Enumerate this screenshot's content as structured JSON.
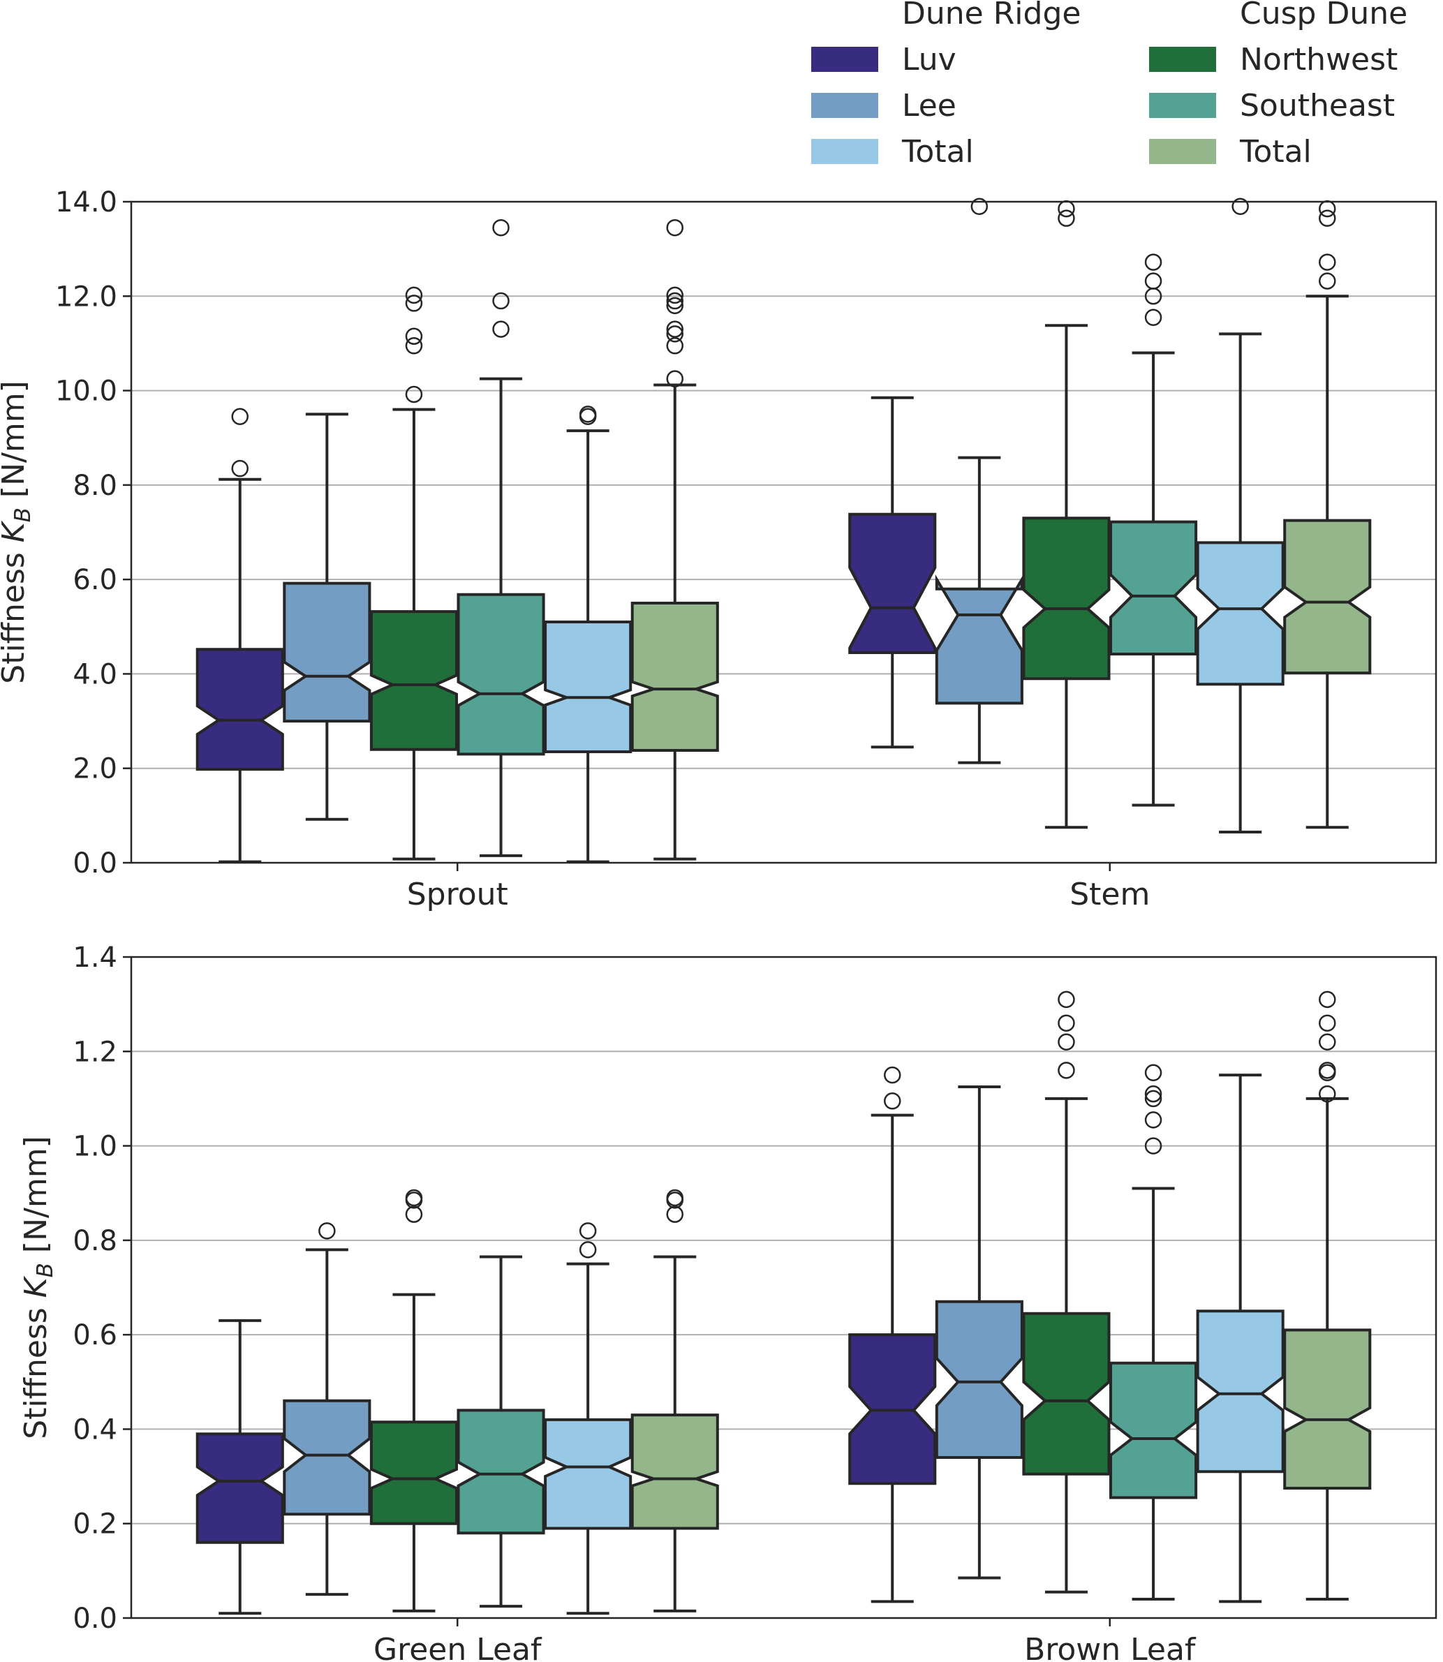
{
  "legend": {
    "groups": [
      {
        "title": "Dune Ridge",
        "entries": [
          {
            "label": "Luv",
            "color": "#372c7f"
          },
          {
            "label": "Lee",
            "color": "#749dc4"
          },
          {
            "label": "Total",
            "color": "#97c9e6"
          }
        ]
      },
      {
        "title": "Cusp Dune",
        "entries": [
          {
            "label": "Northwest",
            "color": "#206e3a"
          },
          {
            "label": "Southeast",
            "color": "#53a293"
          },
          {
            "label": "Total",
            "color": "#93b78b"
          }
        ]
      }
    ]
  },
  "chart_data": [
    {
      "type": "boxplot",
      "notched": true,
      "ylabel_text": "Stiffness ",
      "ylabel_symbol": "K",
      "ylabel_subscript": "B",
      "ylabel_unit": " [N/mm]",
      "ylim": [
        0,
        14
      ],
      "yticks": [
        "0.0",
        "2.0",
        "4.0",
        "6.0",
        "8.0",
        "10.0",
        "12.0",
        "14.0"
      ],
      "grid": true,
      "series_order": [
        "Luv",
        "Lee",
        "Northwest",
        "Southeast",
        "Total (Dune Ridge)",
        "Total (Cusp Dune)"
      ],
      "categories": [
        {
          "label": "Sprout",
          "boxes": [
            {
              "series": "Luv",
              "whislo": 0.02,
              "q1": 1.98,
              "med": 3.02,
              "q3": 4.52,
              "whishi": 8.12,
              "fliers": [
                8.35,
                9.45
              ],
              "notch": [
                2.72,
                3.32
              ]
            },
            {
              "series": "Lee",
              "whislo": 0.92,
              "q1": 3.0,
              "med": 3.95,
              "q3": 5.92,
              "whishi": 9.5,
              "fliers": [],
              "notch": [
                3.65,
                4.25
              ]
            },
            {
              "series": "Northwest",
              "whislo": 0.08,
              "q1": 2.4,
              "med": 3.77,
              "q3": 5.32,
              "whishi": 9.6,
              "fliers": [
                9.92,
                10.95,
                11.15,
                11.85,
                12.02
              ],
              "notch": [
                3.57,
                3.97
              ]
            },
            {
              "series": "Southeast",
              "whislo": 0.15,
              "q1": 2.3,
              "med": 3.58,
              "q3": 5.68,
              "whishi": 10.25,
              "fliers": [
                11.3,
                11.9,
                13.45
              ],
              "notch": [
                3.33,
                3.83
              ]
            },
            {
              "series": "Total (Dune Ridge)",
              "whislo": 0.02,
              "q1": 2.35,
              "med": 3.5,
              "q3": 5.1,
              "whishi": 9.15,
              "fliers": [
                9.45,
                9.5
              ],
              "notch": [
                3.34,
                3.66
              ]
            },
            {
              "series": "Total (Cusp Dune)",
              "whislo": 0.08,
              "q1": 2.38,
              "med": 3.68,
              "q3": 5.5,
              "whishi": 10.12,
              "fliers": [
                10.25,
                10.95,
                11.2,
                11.3,
                11.8,
                11.9,
                12.02,
                13.45
              ],
              "notch": [
                3.53,
                3.83
              ]
            }
          ]
        },
        {
          "label": "Stem",
          "boxes": [
            {
              "series": "Luv",
              "whislo": 2.45,
              "q1": 4.45,
              "med": 5.4,
              "q3": 7.38,
              "whishi": 9.85,
              "fliers": [],
              "notch": [
                4.55,
                6.25
              ]
            },
            {
              "series": "Lee",
              "whislo": 2.12,
              "q1": 3.38,
              "med": 5.25,
              "q3": 5.8,
              "whishi": 8.58,
              "fliers": [
                13.9
              ],
              "notch": [
                4.5,
                6.0
              ]
            },
            {
              "series": "Northwest",
              "whislo": 0.75,
              "q1": 3.9,
              "med": 5.38,
              "q3": 7.3,
              "whishi": 11.38,
              "fliers": [
                13.65,
                13.85
              ],
              "notch": [
                4.98,
                5.78
              ]
            },
            {
              "series": "Southeast",
              "whislo": 1.22,
              "q1": 4.42,
              "med": 5.65,
              "q3": 7.22,
              "whishi": 10.8,
              "fliers": [
                11.55,
                12.0,
                12.32,
                12.72
              ],
              "notch": [
                5.2,
                6.1
              ]
            },
            {
              "series": "Total (Dune Ridge)",
              "whislo": 0.65,
              "q1": 3.78,
              "med": 5.38,
              "q3": 6.78,
              "whishi": 11.2,
              "fliers": [
                13.9
              ],
              "notch": [
                4.95,
                5.81
              ]
            },
            {
              "series": "Total (Cusp Dune)",
              "whislo": 0.75,
              "q1": 4.02,
              "med": 5.52,
              "q3": 7.25,
              "whishi": 12.0,
              "fliers": [
                12.32,
                12.72,
                13.65,
                13.85
              ],
              "notch": [
                5.2,
                5.84
              ]
            }
          ]
        }
      ]
    },
    {
      "type": "boxplot",
      "notched": true,
      "ylabel_text": "Stiffness ",
      "ylabel_symbol": "K",
      "ylabel_subscript": "B",
      "ylabel_unit": " [N/mm]",
      "ylim": [
        0,
        1.4
      ],
      "yticks": [
        "0.0",
        "0.2",
        "0.4",
        "0.6",
        "0.8",
        "1.0",
        "1.2",
        "1.4"
      ],
      "grid": true,
      "series_order": [
        "Luv",
        "Lee",
        "Northwest",
        "Southeast",
        "Total (Dune Ridge)",
        "Total (Cusp Dune)"
      ],
      "categories": [
        {
          "label": "Green Leaf",
          "boxes": [
            {
              "series": "Luv",
              "whislo": 0.01,
              "q1": 0.16,
              "med": 0.29,
              "q3": 0.39,
              "whishi": 0.63,
              "fliers": [],
              "notch": [
                0.26,
                0.32
              ]
            },
            {
              "series": "Lee",
              "whislo": 0.05,
              "q1": 0.22,
              "med": 0.345,
              "q3": 0.46,
              "whishi": 0.78,
              "fliers": [
                0.82
              ],
              "notch": [
                0.31,
                0.38
              ]
            },
            {
              "series": "Northwest",
              "whislo": 0.015,
              "q1": 0.2,
              "med": 0.295,
              "q3": 0.415,
              "whishi": 0.685,
              "fliers": [
                0.855,
                0.885,
                0.89
              ],
              "notch": [
                0.275,
                0.315
              ]
            },
            {
              "series": "Southeast",
              "whislo": 0.025,
              "q1": 0.18,
              "med": 0.305,
              "q3": 0.44,
              "whishi": 0.765,
              "fliers": [],
              "notch": [
                0.28,
                0.33
              ]
            },
            {
              "series": "Total (Dune Ridge)",
              "whislo": 0.01,
              "q1": 0.19,
              "med": 0.32,
              "q3": 0.42,
              "whishi": 0.75,
              "fliers": [
                0.78,
                0.82
              ],
              "notch": [
                0.3,
                0.34
              ]
            },
            {
              "series": "Total (Cusp Dune)",
              "whislo": 0.015,
              "q1": 0.19,
              "med": 0.295,
              "q3": 0.43,
              "whishi": 0.765,
              "fliers": [
                0.855,
                0.885,
                0.89
              ],
              "notch": [
                0.28,
                0.31
              ]
            }
          ]
        },
        {
          "label": "Brown Leaf",
          "boxes": [
            {
              "series": "Luv",
              "whislo": 0.035,
              "q1": 0.285,
              "med": 0.44,
              "q3": 0.6,
              "whishi": 1.065,
              "fliers": [
                1.095,
                1.15
              ],
              "notch": [
                0.39,
                0.49
              ]
            },
            {
              "series": "Lee",
              "whislo": 0.085,
              "q1": 0.34,
              "med": 0.5,
              "q3": 0.67,
              "whishi": 1.125,
              "fliers": [],
              "notch": [
                0.45,
                0.55
              ]
            },
            {
              "series": "Northwest",
              "whislo": 0.055,
              "q1": 0.305,
              "med": 0.46,
              "q3": 0.645,
              "whishi": 1.1,
              "fliers": [
                1.16,
                1.22,
                1.26,
                1.31
              ],
              "notch": [
                0.42,
                0.5
              ]
            },
            {
              "series": "Southeast",
              "whislo": 0.04,
              "q1": 0.255,
              "med": 0.38,
              "q3": 0.54,
              "whishi": 0.91,
              "fliers": [
                1.0,
                1.055,
                1.1,
                1.11,
                1.155
              ],
              "notch": [
                0.345,
                0.415
              ]
            },
            {
              "series": "Total (Dune Ridge)",
              "whislo": 0.035,
              "q1": 0.31,
              "med": 0.475,
              "q3": 0.65,
              "whishi": 1.15,
              "fliers": [],
              "notch": [
                0.44,
                0.51
              ]
            },
            {
              "series": "Total (Cusp Dune)",
              "whislo": 0.04,
              "q1": 0.275,
              "med": 0.42,
              "q3": 0.61,
              "whishi": 1.1,
              "fliers": [
                1.11,
                1.155,
                1.16,
                1.22,
                1.26,
                1.31
              ],
              "notch": [
                0.395,
                0.445
              ]
            }
          ]
        }
      ]
    }
  ]
}
